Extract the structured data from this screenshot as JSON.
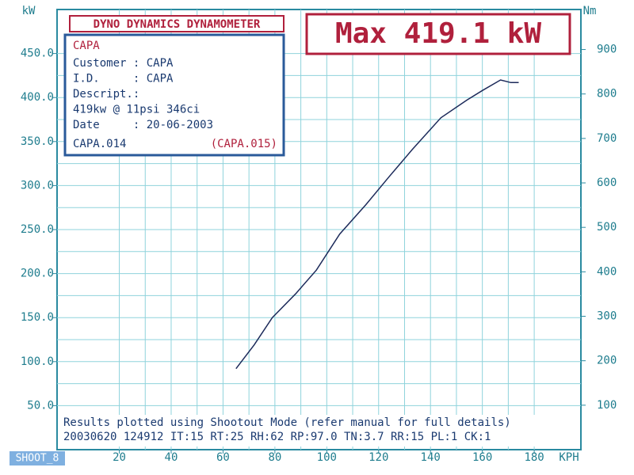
{
  "chart_data": {
    "type": "line",
    "title": "DYNO DYNAMICS DYNAMOMETER",
    "max_label": "Max 419.1 kW",
    "y_label": "kW",
    "y2_label": "Nm",
    "x_label": "KPH",
    "info": {
      "name": "CAPA",
      "lines": [
        "Customer : CAPA",
        "I.D.     : CAPA",
        "Descript.:",
        "419kw @ 11psi 346ci",
        "Date     : 20-06-2003"
      ],
      "file": "CAPA.014",
      "file2": "(CAPA.015)"
    },
    "footer": [
      "Results plotted using Shootout Mode (refer manual for full details)",
      "20030620 124912 IT:15 RT:25 RH:62 RP:97.0 TN:3.7 RR:15 PL:1 CK:1"
    ],
    "tag": "SHOOT_8",
    "x": [
      65,
      72,
      79,
      88,
      96,
      105,
      115,
      124,
      133,
      144,
      154,
      160,
      167,
      171,
      174
    ],
    "values": [
      92,
      119,
      150,
      177,
      204,
      245,
      278,
      310,
      341,
      377,
      397,
      408,
      420,
      417,
      417
    ],
    "color": "#1c2a5a",
    "xlim": [
      -4,
      198
    ],
    "ylim": [
      0,
      500
    ],
    "y2lim": [
      0,
      990
    ],
    "xticks": [
      20,
      40,
      60,
      80,
      100,
      120,
      140,
      160,
      180
    ],
    "yticks": [
      {
        "value": 50,
        "label": "50.0"
      },
      {
        "value": 100,
        "label": "100.0"
      },
      {
        "value": 150,
        "label": "150.0"
      },
      {
        "value": 200,
        "label": "200.0"
      },
      {
        "value": 250,
        "label": "250.0"
      },
      {
        "value": 300,
        "label": "300.0"
      },
      {
        "value": 350,
        "label": "350.0"
      },
      {
        "value": 400,
        "label": "400.0"
      },
      {
        "value": 450,
        "label": "450.0"
      }
    ],
    "y2ticks": [
      100,
      200,
      300,
      400,
      500,
      600,
      700,
      800,
      900
    ],
    "grid": true
  }
}
